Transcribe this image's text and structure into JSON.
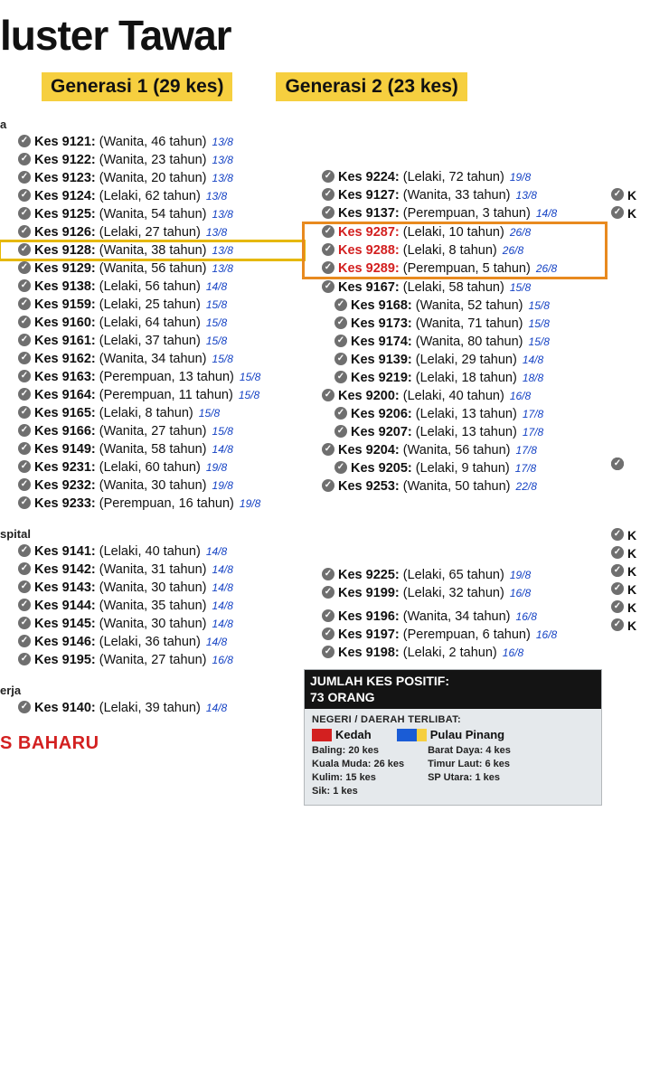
{
  "title": "luster Tawar",
  "generations": [
    {
      "label": "Generasi 1 (29 kes)",
      "bg": "#f6cf3f"
    },
    {
      "label": "Generasi 2 (23 kes)",
      "bg": "#f6cf3f"
    }
  ],
  "col1": {
    "section_a_label": "a",
    "section_a": [
      {
        "id": "Kes 9121:",
        "detail": "(Wanita, 46 tahun)",
        "date": "13/8"
      },
      {
        "id": "Kes 9122:",
        "detail": "(Wanita, 23 tahun)",
        "date": "13/8"
      },
      {
        "id": "Kes 9123:",
        "detail": "(Wanita, 20 tahun)",
        "date": "13/8"
      },
      {
        "id": "Kes 9124:",
        "detail": "(Lelaki, 62 tahun)",
        "date": "13/8"
      },
      {
        "id": "Kes 9125:",
        "detail": "(Wanita, 54 tahun)",
        "date": "13/8"
      },
      {
        "id": "Kes 9126:",
        "detail": "(Lelaki, 27 tahun)",
        "date": "13/8"
      },
      {
        "id": "Kes 9128:",
        "detail": "(Wanita, 38 tahun)",
        "date": "13/8",
        "highlight": "yellow"
      },
      {
        "id": "Kes 9129:",
        "detail": "(Wanita, 56 tahun)",
        "date": "13/8"
      },
      {
        "id": "Kes 9138:",
        "detail": "(Lelaki, 56 tahun)",
        "date": "14/8"
      },
      {
        "id": "Kes 9159:",
        "detail": "(Lelaki, 25 tahun)",
        "date": "15/8"
      },
      {
        "id": "Kes 9160:",
        "detail": "(Lelaki, 64 tahun)",
        "date": "15/8"
      },
      {
        "id": "Kes 9161:",
        "detail": "(Lelaki, 37 tahun)",
        "date": "15/8"
      },
      {
        "id": "Kes 9162:",
        "detail": "(Wanita, 34 tahun)",
        "date": "15/8"
      },
      {
        "id": "Kes 9163:",
        "detail": "(Perempuan, 13 tahun)",
        "date": "15/8"
      },
      {
        "id": "Kes 9164:",
        "detail": "(Perempuan, 11 tahun)",
        "date": "15/8"
      },
      {
        "id": "Kes 9165:",
        "detail": "(Lelaki, 8 tahun)",
        "date": "15/8"
      },
      {
        "id": "Kes 9166:",
        "detail": "(Wanita, 27 tahun)",
        "date": "15/8"
      },
      {
        "id": "Kes 9149:",
        "detail": "(Wanita, 58 tahun)",
        "date": "14/8"
      },
      {
        "id": "Kes 9231:",
        "detail": "(Lelaki, 60 tahun)",
        "date": "19/8"
      },
      {
        "id": "Kes 9232:",
        "detail": "(Wanita, 30 tahun)",
        "date": "19/8"
      },
      {
        "id": "Kes 9233:",
        "detail": "(Perempuan, 16 tahun)",
        "date": "19/8"
      }
    ],
    "section_b_label": "spital",
    "section_b": [
      {
        "id": "Kes 9141:",
        "detail": "(Lelaki, 40 tahun)",
        "date": "14/8"
      },
      {
        "id": "Kes 9142:",
        "detail": "(Wanita, 31 tahun)",
        "date": "14/8"
      },
      {
        "id": "Kes 9143:",
        "detail": "(Wanita, 30 tahun)",
        "date": "14/8"
      },
      {
        "id": "Kes 9144:",
        "detail": "(Wanita, 35 tahun)",
        "date": "14/8"
      },
      {
        "id": "Kes 9145:",
        "detail": "(Wanita, 30 tahun)",
        "date": "14/8"
      },
      {
        "id": "Kes 9146:",
        "detail": "(Lelaki, 36 tahun)",
        "date": "14/8"
      },
      {
        "id": "Kes 9195:",
        "detail": "(Wanita, 27 tahun)",
        "date": "16/8"
      }
    ],
    "section_c_label": "erja",
    "section_c": [
      {
        "id": "Kes 9140:",
        "detail": "(Lelaki, 39 tahun)",
        "date": "14/8"
      }
    ],
    "baharu": "S BAHARU"
  },
  "col2": {
    "group_a": [
      {
        "id": "Kes 9224:",
        "detail": "(Lelaki, 72 tahun)",
        "date": "19/8"
      },
      {
        "id": "Kes 9127:",
        "detail": "(Wanita, 33 tahun)",
        "date": "13/8"
      },
      {
        "id": "Kes 9137:",
        "detail": "(Perempuan, 3 tahun)",
        "date": "14/8"
      }
    ],
    "group_hl": [
      {
        "id": "Kes 9287:",
        "detail": "(Lelaki, 10 tahun)",
        "date": "26/8",
        "red": true
      },
      {
        "id": "Kes 9288:",
        "detail": "(Lelaki, 8 tahun)",
        "date": "26/8",
        "red": true
      },
      {
        "id": "Kes 9289:",
        "detail": "(Perempuan, 5 tahun)",
        "date": "26/8",
        "red": true
      }
    ],
    "group_b": [
      {
        "id": "Kes 9167:",
        "detail": "(Lelaki, 58 tahun)",
        "date": "15/8"
      },
      {
        "id": "Kes 9168:",
        "detail": "(Wanita, 52 tahun)",
        "date": "15/8",
        "indent": true
      },
      {
        "id": "Kes 9173:",
        "detail": "(Wanita, 71 tahun)",
        "date": "15/8",
        "indent": true
      },
      {
        "id": "Kes 9174:",
        "detail": "(Wanita, 80 tahun)",
        "date": "15/8",
        "indent": true
      },
      {
        "id": "Kes 9139:",
        "detail": "(Lelaki, 29 tahun)",
        "date": "14/8",
        "indent": true
      },
      {
        "id": "Kes 9219:",
        "detail": "(Lelaki, 18 tahun)",
        "date": "18/8",
        "indent": true
      },
      {
        "id": "Kes 9200:",
        "detail": "(Lelaki, 40 tahun)",
        "date": "16/8"
      },
      {
        "id": "Kes 9206:",
        "detail": "(Lelaki, 13 tahun)",
        "date": "17/8",
        "indent": true
      },
      {
        "id": "Kes 9207:",
        "detail": "(Lelaki, 13 tahun)",
        "date": "17/8",
        "indent": true
      },
      {
        "id": "Kes 9204:",
        "detail": "(Wanita, 56 tahun)",
        "date": "17/8"
      },
      {
        "id": "Kes 9205:",
        "detail": "(Lelaki, 9 tahun)",
        "date": "17/8",
        "indent": true
      },
      {
        "id": "Kes 9253:",
        "detail": "(Wanita, 50 tahun)",
        "date": "22/8"
      }
    ],
    "group_c": [
      {
        "id": "Kes 9225:",
        "detail": "(Lelaki, 65 tahun)",
        "date": "19/8"
      },
      {
        "id": "Kes 9199:",
        "detail": "(Lelaki, 32 tahun)",
        "date": "16/8"
      }
    ],
    "group_d": [
      {
        "id": "Kes 9196:",
        "detail": "(Wanita, 34 tahun)",
        "date": "16/8"
      },
      {
        "id": "Kes 9197:",
        "detail": "(Perempuan, 6 tahun)",
        "date": "16/8"
      },
      {
        "id": "Kes 9198:",
        "detail": "(Lelaki, 2 tahun)",
        "date": "16/8"
      }
    ]
  },
  "summary": {
    "header": "JUMLAH KES POSITIF:\n73 ORANG",
    "sub": "NEGERI / DAERAH TERLIBAT:",
    "flags": [
      {
        "name": "Kedah",
        "colors": [
          "#d32020",
          "#d32020"
        ]
      },
      {
        "name": "Pulau Pinang",
        "colors": [
          "#1a5cd6",
          "#1a5cd6",
          "#f6cf3f"
        ]
      }
    ],
    "stats_left": [
      "Baling: 20 kes",
      "Kuala Muda: 26 kes",
      "Kulim: 15 kes",
      "Sik: 1 kes"
    ],
    "stats_right": [
      "Barat Daya: 4 kes",
      "Timur Laut: 6 kes",
      "SP Utara: 1 kes"
    ]
  },
  "col3_stubs_top": [
    "K",
    "K"
  ],
  "col3_stubs_mid": [
    "",
    "",
    ""
  ],
  "col3_stubs_bot": [
    "K",
    "K",
    "",
    "K",
    "K",
    "K",
    "K"
  ],
  "colors": {
    "gen_bg": "#f6cf3f",
    "date": "#1442c4",
    "red": "#d32020",
    "check": "#6f6f6f",
    "hl_yellow": "#e6b800",
    "hl_orange": "#e88a1f",
    "summary_bg": "#e5e9ec"
  }
}
